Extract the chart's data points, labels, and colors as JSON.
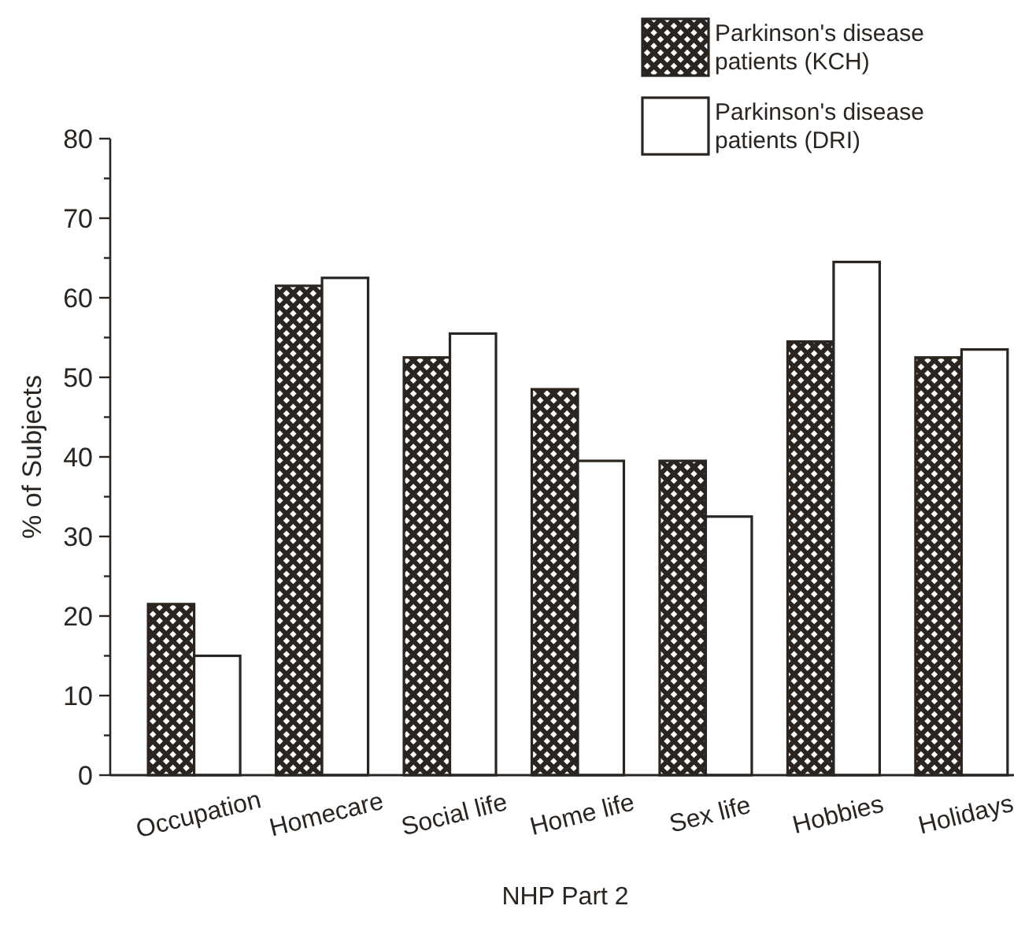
{
  "chart_data": {
    "type": "bar",
    "xlabel": "NHP Part 2",
    "ylabel": "% of Subjects",
    "categories": [
      "Occupation",
      "Homecare",
      "Social life",
      "Home life",
      "Sex life",
      "Hobbies",
      "Holidays"
    ],
    "series": [
      {
        "name": "Parkinson's disease patients (KCH)",
        "color": "#2a2520",
        "values": [
          21.5,
          61.5,
          52.5,
          48.5,
          39.5,
          54.5,
          52.5
        ]
      },
      {
        "name": "Parkinson's disease patients (DRI)",
        "color": "#ffffff",
        "values": [
          15,
          62.5,
          55.5,
          39.5,
          32.5,
          64.5,
          53.5
        ]
      }
    ],
    "ylim": [
      0,
      80
    ],
    "yticks": [
      0,
      {
        "value": 5,
        "label": null
      },
      10,
      {
        "value": 15,
        "label": null
      },
      20,
      {
        "value": 25,
        "label": null
      },
      30,
      {
        "value": 35,
        "label": null
      },
      40,
      {
        "value": 45,
        "label": null
      },
      50,
      {
        "value": 55,
        "label": null
      },
      60,
      {
        "value": 65,
        "label": null
      },
      70,
      {
        "value": 75,
        "label": null
      },
      80
    ],
    "grid": false,
    "legend": "top right"
  }
}
